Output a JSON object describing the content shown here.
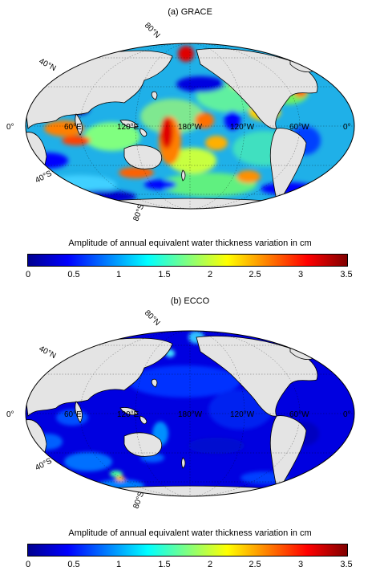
{
  "colormap": [
    "#00008f",
    "#0000ff",
    "#0080ff",
    "#00ffff",
    "#80ff80",
    "#ffff00",
    "#ff8000",
    "#ff0000",
    "#800000"
  ],
  "land_color": "#e4e4e4",
  "panels": [
    {
      "id": "grace",
      "title": "(a) GRACE",
      "grid_labels": {
        "lat_80n": "80°N",
        "lat_40n": "40°N",
        "lat_40s": "40°S",
        "lat_80s": "80°S",
        "lon_0_left": "0°",
        "lon_60e": "60°E",
        "lon_120e": "120°E",
        "lon_180w": "180°W",
        "lon_120w": "120°W",
        "lon_60w": "60°W",
        "lon_0_right": "0°"
      },
      "colorbar": {
        "label": "Amplitude of annual equivalent water thickness variation in cm",
        "ticks": [
          "0",
          "0.5",
          "1",
          "1.5",
          "2",
          "2.5",
          "3",
          "3.5"
        ],
        "range": [
          0,
          3.5
        ]
      }
    },
    {
      "id": "ecco",
      "title": "(b) ECCO",
      "grid_labels": {
        "lat_80n": "80°N",
        "lat_40n": "40°N",
        "lat_40s": "40°S",
        "lat_80s": "80°S",
        "lon_0_left": "0°",
        "lon_60e": "60°E",
        "lon_120e": "120°E",
        "lon_180w": "180°W",
        "lon_120w": "120°W",
        "lon_60w": "60°W",
        "lon_0_right": "0°"
      },
      "colorbar": {
        "label": "Amplitude of annual equivalent water thickness variation in cm",
        "ticks": [
          "0",
          "0.5",
          "1",
          "1.5",
          "2",
          "2.5",
          "3",
          "3.5"
        ],
        "range": [
          0,
          3.5
        ]
      }
    }
  ]
}
